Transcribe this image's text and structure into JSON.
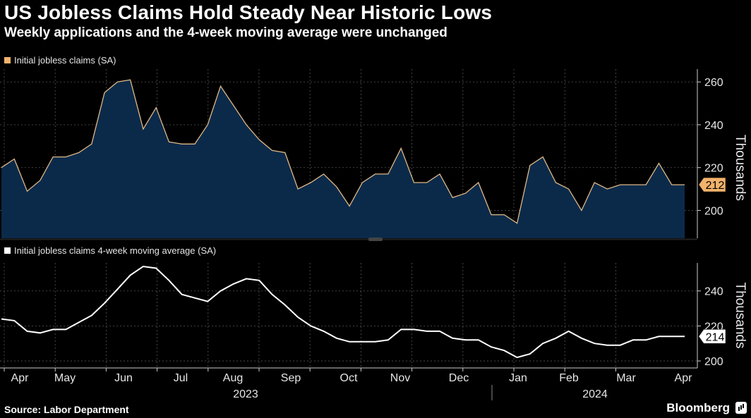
{
  "header": {
    "title": "US Jobless Claims Hold Steady Near Historic Lows",
    "subtitle": "Weekly applications and the 4-week moving average were unchanged"
  },
  "footer": {
    "source": "Source: Labor Department",
    "brand": "Bloomberg"
  },
  "colors": {
    "background": "#000000",
    "area_fill": "#0b2a4a",
    "area_line": "#e0b886",
    "legend1_swatch": "#f2b36b",
    "ma_line": "#ffffff",
    "label1_bg": "#f2b36b",
    "grid": "#555555"
  },
  "chart_data": [
    {
      "type": "area",
      "title": "Initial jobless claims (SA)",
      "legend": "Initial jobless claims (SA)",
      "ylabel": "Thousands",
      "ylim": [
        187,
        266
      ],
      "yticks": [
        200,
        220,
        240,
        260
      ],
      "grid": true,
      "last_value_label": "212",
      "series": [
        {
          "name": "Initial jobless claims (SA)",
          "values": [
            220,
            224,
            209,
            214,
            225,
            225,
            227,
            231,
            255,
            260,
            261,
            238,
            248,
            232,
            231,
            231,
            240,
            258,
            249,
            240,
            233,
            228,
            227,
            210,
            213,
            217,
            211,
            202,
            213,
            217,
            217,
            229,
            213,
            213,
            217,
            206,
            208,
            213,
            198,
            198,
            194,
            221,
            225,
            213,
            210,
            200,
            213,
            210,
            212,
            212,
            212,
            222,
            212,
            212
          ]
        }
      ]
    },
    {
      "type": "line",
      "title": "Initial jobless claims 4-week moving average (SA)",
      "legend": "Initial jobless claims 4-week moving average (SA)",
      "ylabel": "Thousands",
      "ylim": [
        196,
        256
      ],
      "yticks": [
        200,
        220,
        240
      ],
      "grid": true,
      "last_value_label": "214",
      "series": [
        {
          "name": "Initial jobless claims 4-week moving average (SA)",
          "values": [
            224,
            223,
            217,
            216,
            218,
            218,
            222,
            226,
            233,
            241,
            249,
            254,
            253,
            246,
            238,
            236,
            234,
            240,
            244,
            247,
            246,
            238,
            232,
            225,
            220,
            217,
            213,
            211,
            211,
            211,
            212,
            218,
            218,
            217,
            217,
            213,
            212,
            212,
            208,
            206,
            202,
            204,
            210,
            213,
            217,
            213,
            210,
            209,
            209,
            212,
            212,
            214,
            214,
            214
          ]
        }
      ]
    }
  ],
  "x_axis": {
    "months": [
      "Apr",
      "May",
      "Jun",
      "Jul",
      "Aug",
      "Sep",
      "Oct",
      "Nov",
      "Dec",
      "Jan",
      "Feb",
      "Mar",
      "Apr"
    ],
    "years": [
      "2023",
      "2024"
    ]
  }
}
